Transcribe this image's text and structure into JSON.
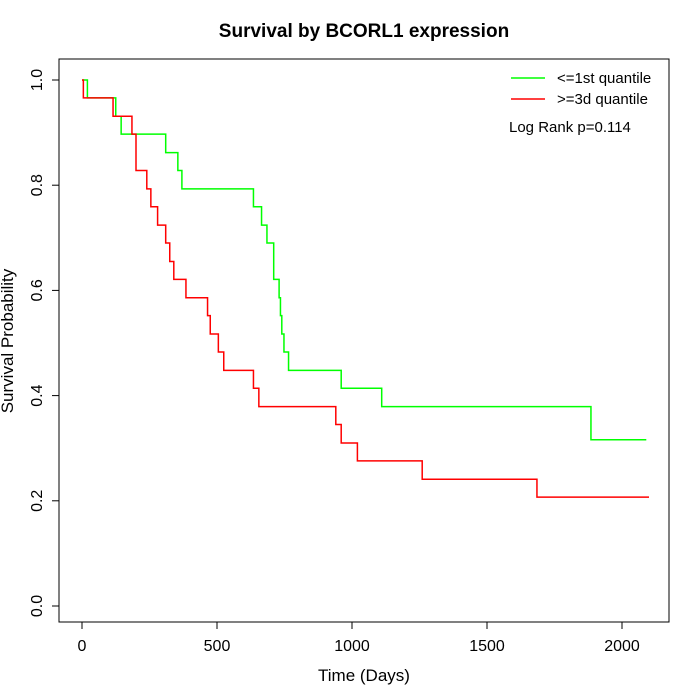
{
  "chart_data": {
    "type": "line",
    "title": "Survival by BCORL1 expression",
    "xlabel": "Time (Days)",
    "ylabel": "Survival Probability",
    "xlim": [
      0,
      2100
    ],
    "ylim": [
      0,
      1.0
    ],
    "x_ticks": [
      0,
      500,
      1000,
      1500,
      2000
    ],
    "y_ticks": [
      0.0,
      0.2,
      0.4,
      0.6,
      0.8,
      1.0
    ],
    "x_tick_labels": [
      "0",
      "500",
      "1000",
      "1500",
      "2000"
    ],
    "y_tick_labels": [
      "0.0",
      "0.2",
      "0.4",
      "0.6",
      "0.8",
      "1.0"
    ],
    "step": true,
    "grid": false,
    "legend_position": "top-right",
    "annotation": "Log Rank p=0.114",
    "series": [
      {
        "name": "<=1st quantile",
        "color": "#00ff00",
        "x": [
          0,
          20,
          125,
          145,
          310,
          355,
          370,
          635,
          665,
          685,
          710,
          730,
          735,
          740,
          748,
          765,
          790,
          960,
          1110,
          1885,
          2090
        ],
        "y": [
          1.0,
          0.966,
          0.931,
          0.897,
          0.862,
          0.828,
          0.793,
          0.759,
          0.724,
          0.69,
          0.621,
          0.586,
          0.552,
          0.517,
          0.483,
          0.448,
          0.448,
          0.414,
          0.379,
          0.316,
          0.316
        ]
      },
      {
        "name": ">=3d quantile",
        "color": "#ff0000",
        "x": [
          0,
          5,
          115,
          185,
          200,
          240,
          255,
          280,
          310,
          325,
          340,
          385,
          465,
          475,
          505,
          525,
          635,
          655,
          940,
          960,
          1020,
          1260,
          1685,
          2100
        ],
        "y": [
          1.0,
          0.966,
          0.931,
          0.897,
          0.828,
          0.793,
          0.759,
          0.724,
          0.69,
          0.655,
          0.621,
          0.586,
          0.552,
          0.517,
          0.483,
          0.448,
          0.414,
          0.379,
          0.345,
          0.31,
          0.276,
          0.241,
          0.207,
          0.207
        ]
      }
    ]
  }
}
